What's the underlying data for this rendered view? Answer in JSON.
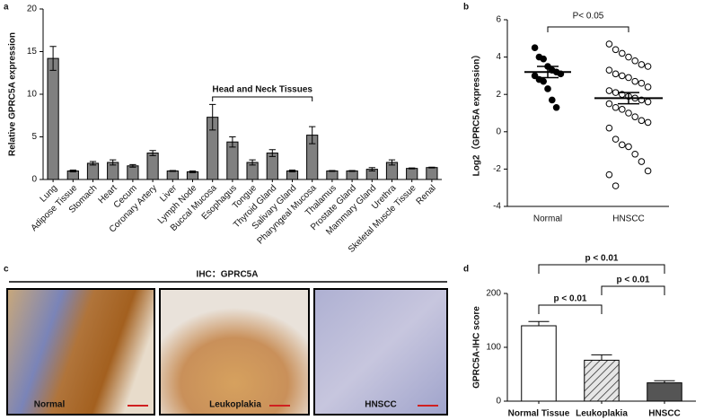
{
  "chart_data": [
    {
      "type": "bar",
      "panel": "a",
      "ylabel": "Relative GPRC5A expression",
      "categories": [
        "Lung",
        "Adipose Tissue",
        "Stomach",
        "Heart",
        "Cecum",
        "Coronary Artery",
        "Liver",
        "Lymph Node",
        "Buccal Mucosa",
        "Esophagus",
        "Tongue",
        "Thyroid Gland",
        "Salivary Gland",
        "Pharyngeal Mucosa",
        "Thalamus",
        "Prostate Gland",
        "Mammary Gland",
        "Urethra",
        "Skeletal Muscle Tissue",
        "Renal"
      ],
      "values": [
        14.2,
        1.0,
        1.9,
        2.0,
        1.6,
        3.1,
        1.0,
        0.9,
        7.3,
        4.4,
        2.0,
        3.1,
        1.0,
        5.2,
        1.0,
        1.0,
        1.2,
        2.0,
        1.3,
        1.4
      ],
      "errors": [
        1.4,
        0.1,
        0.2,
        0.3,
        0.15,
        0.3,
        0.05,
        0.1,
        1.5,
        0.6,
        0.3,
        0.4,
        0.1,
        1.0,
        0.05,
        0.05,
        0.2,
        0.3,
        0.05,
        0.05
      ],
      "color": "#808080",
      "ylim": [
        0,
        20
      ],
      "yticks": [
        0,
        5,
        10,
        15,
        20
      ],
      "annotation": {
        "text": "Head and Neck Tissues",
        "span": [
          "Buccal Mucosa",
          "Pharyngeal Mucosa"
        ]
      }
    },
    {
      "type": "dot",
      "panel": "b",
      "ylabel": "Log2（GPRC5A expression）",
      "categories": [
        "Normal",
        "HNSCC"
      ],
      "markers": [
        "filled",
        "open"
      ],
      "points": [
        [
          4.5,
          4.0,
          3.9,
          3.5,
          3.3,
          3.2,
          3.1,
          3.0,
          2.8,
          2.7,
          2.3,
          1.7,
          1.3
        ],
        [
          4.7,
          4.4,
          4.2,
          4.0,
          3.8,
          3.6,
          3.5,
          3.3,
          3.1,
          3.0,
          2.9,
          2.7,
          2.6,
          2.4,
          2.2,
          2.1,
          2.0,
          1.9,
          1.8,
          1.7,
          1.6,
          1.5,
          1.3,
          1.2,
          1.0,
          0.8,
          0.6,
          0.5,
          0.2,
          -0.4,
          -0.7,
          -0.8,
          -1.2,
          -1.6,
          -2.1,
          -2.3,
          -2.9
        ]
      ],
      "means": [
        3.2,
        1.8
      ],
      "errors": [
        0.3,
        0.3
      ],
      "ylim": [
        -4,
        6
      ],
      "yticks": [
        -4,
        -2,
        0,
        2,
        4,
        6
      ],
      "annotation": "P< 0.05"
    },
    {
      "type": "image",
      "panel": "c",
      "title": "IHC：GPRC5A",
      "labels": [
        "Normal",
        "Leukoplakia",
        "HNSCC"
      ]
    },
    {
      "type": "bar",
      "panel": "d",
      "ylabel": "GPRC5A-IHC score",
      "categories": [
        "Normal Tissue",
        "Leukoplakia",
        "HNSCC"
      ],
      "values": [
        140,
        76,
        34
      ],
      "errors": [
        8,
        10,
        4
      ],
      "colors": [
        "#ffffff",
        "#d9d9d9",
        "#555555"
      ],
      "hatch": [
        false,
        true,
        false
      ],
      "ylim": [
        0,
        200
      ],
      "yticks": [
        0,
        100,
        200
      ],
      "comparisons": [
        {
          "pair": [
            0,
            1
          ],
          "label": "p < 0.01"
        },
        {
          "pair": [
            1,
            2
          ],
          "label": "p < 0.01"
        },
        {
          "pair": [
            0,
            2
          ],
          "label": "p < 0.01"
        }
      ]
    }
  ]
}
